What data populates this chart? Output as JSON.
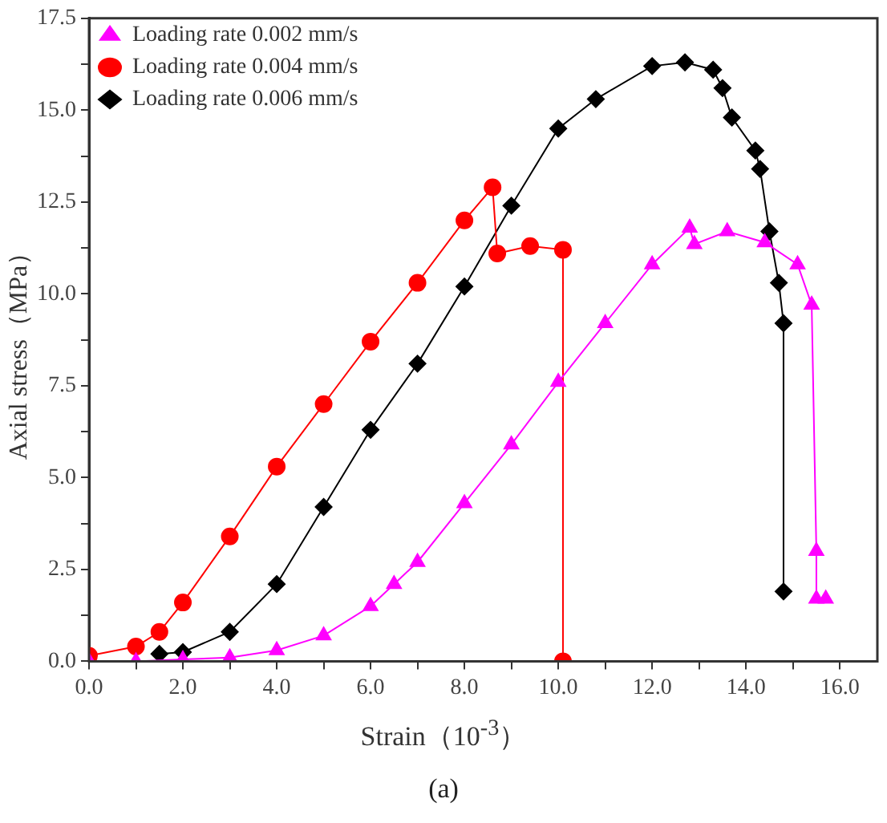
{
  "chart_data": {
    "type": "line",
    "xlabel": "Strain（10$^{-3}$）",
    "ylabel": "Axial stress（MPa）",
    "annotations": [
      "(a)"
    ],
    "xlim": [
      0,
      16.8
    ],
    "ylim": [
      0,
      17.5
    ],
    "xticks": [
      {
        "value": 0,
        "label": "0.0"
      },
      {
        "value": 1,
        "label": null
      },
      {
        "value": 2,
        "label": "2.0"
      },
      {
        "value": 3,
        "label": null
      },
      {
        "value": 4,
        "label": "4.0"
      },
      {
        "value": 5,
        "label": null
      },
      {
        "value": 6,
        "label": "6.0"
      },
      {
        "value": 7,
        "label": null
      },
      {
        "value": 8,
        "label": "8.0"
      },
      {
        "value": 9,
        "label": null
      },
      {
        "value": 10,
        "label": "10.0"
      },
      {
        "value": 11,
        "label": null
      },
      {
        "value": 12,
        "label": "12.0"
      },
      {
        "value": 13,
        "label": null
      },
      {
        "value": 14,
        "label": "14.0"
      },
      {
        "value": 15,
        "label": null
      },
      {
        "value": 16,
        "label": "16.0"
      }
    ],
    "yticks": [
      {
        "value": 0,
        "label": "0.0"
      },
      {
        "value": 1.25,
        "label": null
      },
      2.5,
      {
        "value": 3.75,
        "label": null
      },
      {
        "value": 5,
        "label": "5.0"
      },
      {
        "value": 6.25,
        "label": null
      },
      7.5,
      {
        "value": 8.75,
        "label": null
      },
      {
        "value": 10,
        "label": "10.0"
      },
      {
        "value": 11.25,
        "label": null
      },
      12.5,
      {
        "value": 13.75,
        "label": null
      },
      {
        "value": 15,
        "label": "15.0"
      },
      {
        "value": 16.25,
        "label": null
      },
      17.5
    ],
    "grid": false,
    "legend": "top left",
    "line_style": "solid",
    "series": [
      {
        "name": "Loading rate 0.002 mm/s",
        "color": "#ff00ff",
        "marker": "triangle",
        "x": [
          0,
          1,
          2,
          3,
          4,
          5,
          6,
          6.5,
          7,
          8,
          9,
          10,
          11,
          12,
          12.8,
          12.9,
          13.6,
          14.4,
          15.1,
          15.4,
          15.5,
          15.5,
          15.7
        ],
        "values": [
          0,
          0,
          0.05,
          0.1,
          0.3,
          0.7,
          1.5,
          2.1,
          2.7,
          4.3,
          5.9,
          7.6,
          9.2,
          10.8,
          11.8,
          11.35,
          11.7,
          11.4,
          10.8,
          9.7,
          3.0,
          1.7,
          1.7
        ]
      },
      {
        "name": "Loading rate 0.004 mm/s",
        "color": "#ff0000",
        "marker": "circle",
        "x": [
          0,
          1,
          1.5,
          2,
          3,
          4,
          5,
          6,
          7,
          8,
          8.6,
          8.7,
          9.4,
          10.1,
          10.1
        ],
        "values": [
          0.15,
          0.4,
          0.8,
          1.6,
          3.4,
          5.3,
          7.0,
          8.7,
          10.3,
          12.0,
          12.9,
          11.1,
          11.3,
          11.2,
          0
        ]
      },
      {
        "name": "Loading rate 0.006 mm/s",
        "color": "#000000",
        "marker": "diamond",
        "x": [
          1.5,
          2,
          3,
          4,
          5,
          6,
          7,
          8,
          9,
          10,
          10.8,
          12,
          12.7,
          13.3,
          13.5,
          13.7,
          14.2,
          14.3,
          14.5,
          14.7,
          14.8,
          14.8
        ],
        "values": [
          0.2,
          0.25,
          0.8,
          2.1,
          4.2,
          6.3,
          8.1,
          10.2,
          12.4,
          14.5,
          15.3,
          16.2,
          16.3,
          16.1,
          15.6,
          14.8,
          13.9,
          13.4,
          11.7,
          10.3,
          9.2,
          1.9
        ]
      }
    ]
  }
}
